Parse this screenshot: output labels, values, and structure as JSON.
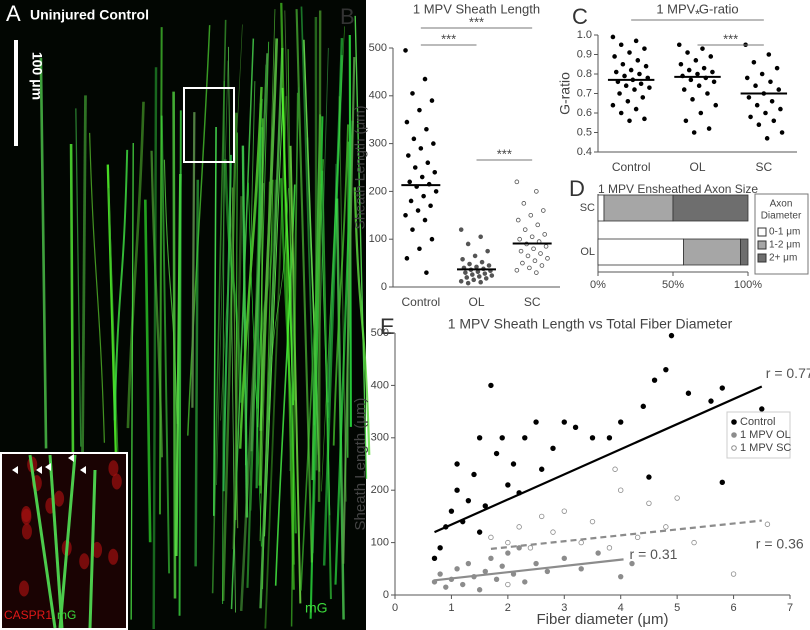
{
  "panel_a": {
    "panel_label": "A",
    "title": "Uninjured Control",
    "scale_bar": "100 μm",
    "channel": "mG",
    "inset_channels": [
      "CASPR1",
      "mG"
    ]
  },
  "chart_data": [
    {
      "type": "strip",
      "panel_label": "B",
      "title": "1 MPV  Sheath Length",
      "ylabel": "Sheath Length (μm)",
      "categories": [
        "Control",
        "OL",
        "SC"
      ],
      "values": [
        [
          495,
          435,
          405,
          390,
          370,
          345,
          330,
          310,
          300,
          290,
          275,
          260,
          250,
          240,
          230,
          220,
          215,
          210,
          200,
          190,
          180,
          170,
          160,
          150,
          140,
          120,
          100,
          80,
          60,
          30
        ],
        [
          120,
          105,
          90,
          75,
          65,
          58,
          52,
          48,
          45,
          42,
          40,
          38,
          36,
          34,
          32,
          30,
          28,
          26,
          24,
          22,
          20,
          18,
          15,
          12,
          10,
          8
        ],
        [
          220,
          200,
          175,
          160,
          150,
          140,
          130,
          120,
          110,
          105,
          100,
          95,
          90,
          85,
          80,
          75,
          70,
          65,
          60,
          55,
          50,
          45,
          40,
          35,
          30
        ]
      ],
      "means": [
        213,
        37,
        91
      ],
      "colors": [
        "#000000",
        "#555555",
        "#555555"
      ],
      "open": [
        false,
        false,
        true
      ],
      "comparisons": [
        {
          "groups": [
            "Control",
            "OL"
          ],
          "label": "***"
        },
        {
          "groups": [
            "Control",
            "SC"
          ],
          "label": "***"
        },
        {
          "groups": [
            "OL",
            "SC"
          ],
          "label": "***"
        }
      ],
      "ylim": [
        0,
        500
      ],
      "yticks": [
        0,
        100,
        200,
        300,
        400,
        500
      ]
    },
    {
      "type": "strip",
      "panel_label": "C",
      "title": "1 MPV  G-ratio",
      "ylabel": "G-ratio",
      "categories": [
        "Control",
        "OL",
        "SC"
      ],
      "values": [
        [
          0.99,
          0.97,
          0.95,
          0.93,
          0.91,
          0.89,
          0.87,
          0.85,
          0.84,
          0.82,
          0.81,
          0.8,
          0.79,
          0.78,
          0.77,
          0.76,
          0.75,
          0.74,
          0.73,
          0.72,
          0.7,
          0.68,
          0.66,
          0.64,
          0.62,
          0.6,
          0.57,
          0.56
        ],
        [
          0.95,
          0.93,
          0.91,
          0.89,
          0.87,
          0.85,
          0.83,
          0.82,
          0.81,
          0.8,
          0.79,
          0.78,
          0.77,
          0.76,
          0.74,
          0.72,
          0.7,
          0.67,
          0.64,
          0.6,
          0.56,
          0.52,
          0.5
        ],
        [
          0.95,
          0.9,
          0.86,
          0.83,
          0.8,
          0.78,
          0.76,
          0.74,
          0.72,
          0.7,
          0.68,
          0.66,
          0.64,
          0.62,
          0.6,
          0.58,
          0.56,
          0.54,
          0.5,
          0.47
        ]
      ],
      "means": [
        0.77,
        0.785,
        0.7
      ],
      "colors": [
        "#000000",
        "#000000",
        "#000000"
      ],
      "open": [
        false,
        false,
        false
      ],
      "comparisons": [
        {
          "groups": [
            "Control",
            "SC"
          ],
          "label": "*"
        },
        {
          "groups": [
            "OL",
            "SC"
          ],
          "label": "***"
        }
      ],
      "ylim": [
        0.4,
        1.0
      ],
      "yticks": [
        0.4,
        0.5,
        0.6,
        0.7,
        0.8,
        0.9,
        {
          "value": 1,
          "label": "1.0"
        }
      ]
    },
    {
      "type": "stacked-hbar",
      "panel_label": "D",
      "title": "1 MPV Ensheathed Axon Size",
      "categories": [
        "SC",
        "OL"
      ],
      "legend_title": [
        "Axon",
        "Diameter"
      ],
      "series": [
        {
          "name": "0-1 μm",
          "color": "#ffffff",
          "values": [
            4,
            57
          ]
        },
        {
          "name": "1-2 μm",
          "color": "#a6a6a6",
          "values": [
            46,
            38
          ]
        },
        {
          "name": "2+ μm",
          "color": "#6e6e6e",
          "values": [
            50,
            5
          ]
        }
      ],
      "xlim": [
        0,
        100
      ],
      "xticks": [
        {
          "value": 0,
          "label": "0%"
        },
        {
          "value": 50,
          "label": "50%"
        },
        {
          "value": 100,
          "label": "100%"
        }
      ]
    },
    {
      "type": "scatter",
      "panel_label": "E",
      "title": "1 MPV Sheath Length vs Total Fiber Diameter",
      "xlabel": "Fiber diameter (μm)",
      "ylabel": "Sheath Length (μm)",
      "legend": "right",
      "series": [
        {
          "name": "Control",
          "color": "#000000",
          "open": false,
          "x": [
            0.7,
            0.8,
            0.9,
            1.0,
            1.1,
            1.1,
            1.2,
            1.3,
            1.4,
            1.5,
            1.5,
            1.6,
            1.7,
            1.8,
            1.9,
            2.0,
            2.1,
            2.2,
            2.3,
            2.5,
            2.6,
            2.8,
            3.0,
            3.2,
            3.5,
            3.8,
            4.0,
            4.4,
            4.6,
            4.8,
            4.9,
            5.2,
            5.6,
            5.8,
            6.5,
            5.8,
            4.5
          ],
          "values": [
            70,
            90,
            130,
            160,
            200,
            250,
            140,
            180,
            230,
            300,
            120,
            170,
            400,
            270,
            300,
            210,
            250,
            195,
            300,
            330,
            240,
            280,
            330,
            320,
            300,
            300,
            330,
            360,
            410,
            430,
            495,
            385,
            370,
            395,
            355,
            215,
            225
          ],
          "fit": {
            "x": [
              0.7,
              6.5
            ],
            "values": [
              120,
              398
            ],
            "label": "r = 0.77",
            "dashed": false
          }
        },
        {
          "name": "1 MPV OL",
          "color": "#8c8c8c",
          "open": false,
          "x": [
            0.7,
            0.8,
            0.9,
            1.0,
            1.1,
            1.2,
            1.3,
            1.4,
            1.5,
            1.6,
            1.7,
            1.8,
            1.9,
            2.0,
            2.1,
            2.2,
            2.3,
            2.5,
            2.7,
            3.0,
            3.3,
            3.6,
            4.0,
            4.2
          ],
          "values": [
            25,
            40,
            15,
            30,
            50,
            20,
            60,
            35,
            10,
            45,
            70,
            30,
            55,
            80,
            40,
            90,
            25,
            60,
            45,
            70,
            50,
            80,
            35,
            60
          ],
          "fit": {
            "x": [
              0.7,
              4.05
            ],
            "values": [
              28,
              68
            ],
            "label": "r = 0.31",
            "dashed": false
          }
        },
        {
          "name": "1 MPV SC",
          "color": "#8c8c8c",
          "open": true,
          "x": [
            1.7,
            2.0,
            2.2,
            2.4,
            2.6,
            2.8,
            3.0,
            3.3,
            3.5,
            3.8,
            4.0,
            4.3,
            4.5,
            4.8,
            5.0,
            5.3,
            6.0,
            6.6,
            2.0,
            3.9
          ],
          "values": [
            110,
            100,
            130,
            90,
            150,
            120,
            160,
            100,
            140,
            90,
            200,
            110,
            175,
            130,
            185,
            100,
            40,
            135,
            20,
            240
          ],
          "fit": {
            "x": [
              1.7,
              6.5
            ],
            "values": [
              88,
              142
            ],
            "label": "r = 0.36",
            "dashed": true
          }
        }
      ],
      "xlim": [
        0,
        7
      ],
      "xticks": [
        0,
        1,
        2,
        3,
        4,
        5,
        6,
        7
      ],
      "ylim": [
        0,
        500
      ],
      "yticks": [
        0,
        100,
        200,
        300,
        400,
        500
      ]
    }
  ]
}
